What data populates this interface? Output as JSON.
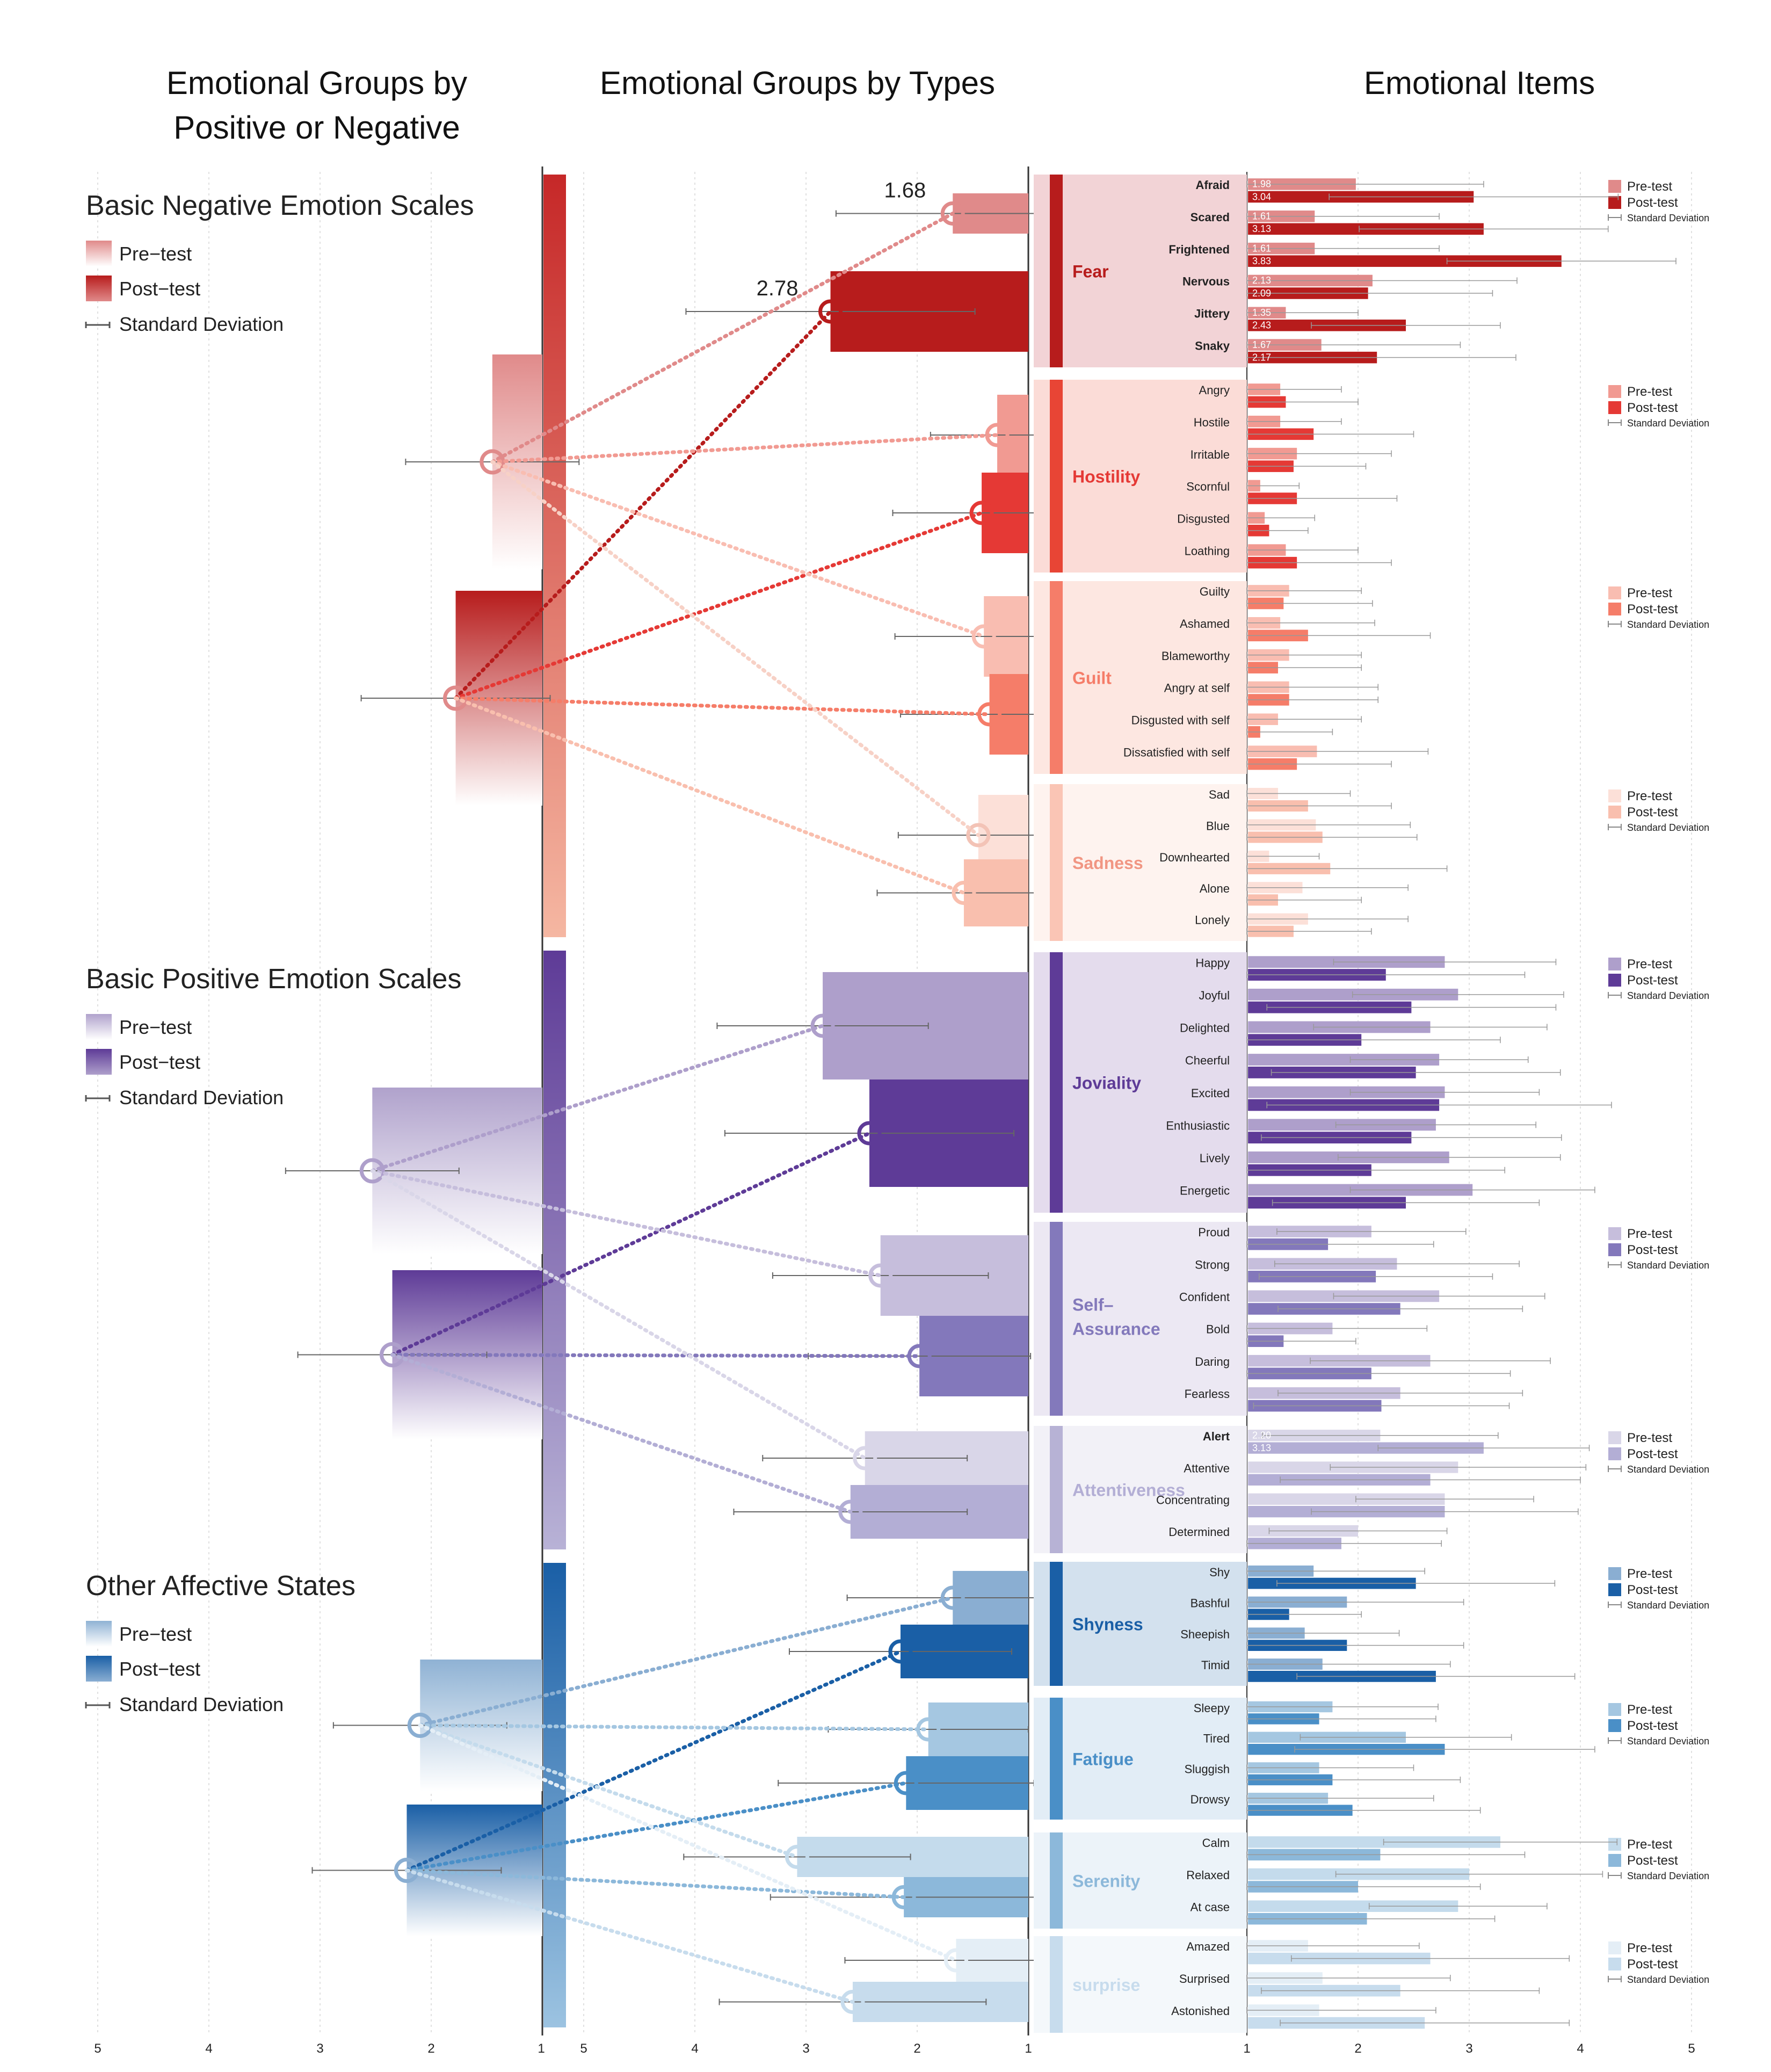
{
  "titles": {
    "left": [
      "Emotional Groups by",
      "Positive or Negative"
    ],
    "middle": "Emotional Groups by Types",
    "right": "Emotional Items"
  },
  "legend_labels": {
    "pre": "Pre−test",
    "post": "Post−test",
    "sd": "Standard Deviation"
  },
  "item_legend_labels": {
    "pre": "Pre-test",
    "post": "Post-test",
    "sd": "Standard Deviation"
  },
  "axes": {
    "left_ticks": [
      "5",
      "4",
      "3",
      "2",
      "1"
    ],
    "middle_ticks": [
      "5",
      "4",
      "3",
      "2",
      "1"
    ],
    "right_ticks": [
      "1",
      "2",
      "3",
      "4",
      "5"
    ],
    "range": [
      1,
      5
    ]
  },
  "colors": {
    "red_dark": "#b71c1c",
    "red_pre": "#e08a8a",
    "purple_dark": "#5e3b97",
    "purple_pre": "#b0a2cc",
    "blue_dark": "#1a5fa6",
    "blue_pre": "#8fb2d4"
  },
  "chart_data": {
    "type": "bar",
    "annotations": {
      "fear_pre": "1.68",
      "fear_post": "2.78"
    },
    "groups": [
      {
        "name": "Basic Negative Emotion Scales",
        "theme": "red",
        "pre": 1.45,
        "pre_sd": 0.78,
        "post": 1.78,
        "post_sd": 0.85,
        "types": [
          {
            "name": "Fear",
            "pre": 1.68,
            "pre_sd": 1.05,
            "post": 2.78,
            "post_sd": 1.3,
            "items": [
              {
                "name": "Afraid",
                "pre": 1.98,
                "pre_sd": 1.15,
                "post": 3.04,
                "post_sd": 1.3,
                "pre_label": "1.98",
                "post_label": "3.04",
                "bold": true
              },
              {
                "name": "Scared",
                "pre": 1.61,
                "pre_sd": 1.12,
                "post": 3.13,
                "post_sd": 1.12,
                "pre_label": "1.61",
                "post_label": "3.13",
                "bold": true
              },
              {
                "name": "Frightened",
                "pre": 1.61,
                "pre_sd": 1.12,
                "post": 3.83,
                "post_sd": 1.03,
                "pre_label": "1.61",
                "post_label": "3.83",
                "bold": true
              },
              {
                "name": "Nervous",
                "pre": 2.13,
                "pre_sd": 1.3,
                "post": 2.09,
                "post_sd": 1.12,
                "pre_label": "2.13",
                "post_label": "2.09",
                "bold": true
              },
              {
                "name": "Jittery",
                "pre": 1.35,
                "pre_sd": 0.65,
                "post": 2.43,
                "post_sd": 0.85,
                "pre_label": "1.35",
                "post_label": "2.43",
                "bold": true
              },
              {
                "name": "Snaky",
                "pre": 1.67,
                "pre_sd": 1.25,
                "post": 2.17,
                "post_sd": 1.25,
                "pre_label": "1.67",
                "post_label": "2.17",
                "bold": true
              }
            ]
          },
          {
            "name": "Hostility",
            "pre": 1.28,
            "pre_sd": 0.6,
            "post": 1.42,
            "post_sd": 0.8,
            "items": [
              {
                "name": "Angry",
                "pre": 1.3,
                "pre_sd": 0.55,
                "post": 1.35,
                "post_sd": 0.65
              },
              {
                "name": "Hostile",
                "pre": 1.3,
                "pre_sd": 0.55,
                "post": 1.6,
                "post_sd": 0.9
              },
              {
                "name": "Irritable",
                "pre": 1.45,
                "pre_sd": 0.85,
                "post": 1.42,
                "post_sd": 0.65
              },
              {
                "name": "Scornful",
                "pre": 1.12,
                "pre_sd": 0.35,
                "post": 1.45,
                "post_sd": 0.9
              },
              {
                "name": "Disgusted",
                "pre": 1.16,
                "pre_sd": 0.45,
                "post": 1.2,
                "post_sd": 0.35
              },
              {
                "name": "Loathing",
                "pre": 1.35,
                "pre_sd": 0.65,
                "post": 1.45,
                "post_sd": 0.85
              }
            ]
          },
          {
            "name": "Guilt",
            "pre": 1.4,
            "pre_sd": 0.8,
            "post": 1.35,
            "post_sd": 0.8,
            "items": [
              {
                "name": "Guilty",
                "pre": 1.38,
                "pre_sd": 0.65,
                "post": 1.33,
                "post_sd": 0.8
              },
              {
                "name": "Ashamed",
                "pre": 1.3,
                "pre_sd": 0.85,
                "post": 1.55,
                "post_sd": 1.1
              },
              {
                "name": "Blameworthy",
                "pre": 1.38,
                "pre_sd": 0.65,
                "post": 1.28,
                "post_sd": 0.75
              },
              {
                "name": "Angry at self",
                "pre": 1.38,
                "pre_sd": 0.8,
                "post": 1.38,
                "post_sd": 0.8
              },
              {
                "name": "Disgusted with self",
                "pre": 1.28,
                "pre_sd": 0.75,
                "post": 1.12,
                "post_sd": 0.65
              },
              {
                "name": "Dissatisfied with self",
                "pre": 1.63,
                "pre_sd": 1.0,
                "post": 1.45,
                "post_sd": 0.85
              }
            ]
          },
          {
            "name": "Sadness",
            "pre": 1.45,
            "pre_sd": 0.72,
            "post": 1.58,
            "post_sd": 0.78,
            "items": [
              {
                "name": "Sad",
                "pre": 1.28,
                "pre_sd": 0.65,
                "post": 1.55,
                "post_sd": 0.75
              },
              {
                "name": "Blue",
                "pre": 1.62,
                "pre_sd": 0.85,
                "post": 1.68,
                "post_sd": 0.85
              },
              {
                "name": "Downhearted",
                "pre": 1.2,
                "pre_sd": 0.45,
                "post": 1.75,
                "post_sd": 1.05
              },
              {
                "name": "Alone",
                "pre": 1.5,
                "pre_sd": 0.95,
                "post": 1.28,
                "post_sd": 0.75
              },
              {
                "name": "Lonely",
                "pre": 1.55,
                "pre_sd": 0.9,
                "post": 1.42,
                "post_sd": 0.7
              }
            ]
          }
        ]
      },
      {
        "name": "Basic Positive Emotion Scales",
        "theme": "purple",
        "pre": 2.53,
        "pre_sd": 0.78,
        "post": 2.35,
        "post_sd": 0.85,
        "types": [
          {
            "name": "Joviality",
            "pre": 2.85,
            "pre_sd": 0.95,
            "post": 2.43,
            "post_sd": 1.3,
            "items": [
              {
                "name": "Happy",
                "pre": 2.78,
                "pre_sd": 1.0,
                "post": 2.25,
                "post_sd": 1.25
              },
              {
                "name": "Joyful",
                "pre": 2.9,
                "pre_sd": 0.95,
                "post": 2.48,
                "post_sd": 1.3
              },
              {
                "name": "Delighted",
                "pre": 2.65,
                "pre_sd": 1.05,
                "post": 2.03,
                "post_sd": 1.25
              },
              {
                "name": "Cheerful",
                "pre": 2.73,
                "pre_sd": 0.8,
                "post": 2.52,
                "post_sd": 1.3
              },
              {
                "name": "Excited",
                "pre": 2.78,
                "pre_sd": 0.85,
                "post": 2.73,
                "post_sd": 1.55
              },
              {
                "name": "Enthusiastic",
                "pre": 2.7,
                "pre_sd": 0.9,
                "post": 2.48,
                "post_sd": 1.35
              },
              {
                "name": "Lively",
                "pre": 2.82,
                "pre_sd": 1.0,
                "post": 2.12,
                "post_sd": 1.2
              },
              {
                "name": "Energetic",
                "pre": 3.03,
                "pre_sd": 1.1,
                "post": 2.43,
                "post_sd": 1.2
              }
            ]
          },
          {
            "name": "Self-Assurance",
            "pre": 2.33,
            "pre_sd": 0.97,
            "post": 1.98,
            "post_sd": 1.0,
            "items": [
              {
                "name": "Proud",
                "pre": 2.12,
                "pre_sd": 0.85,
                "post": 1.73,
                "post_sd": 0.95
              },
              {
                "name": "Strong",
                "pre": 2.35,
                "pre_sd": 1.1,
                "post": 2.16,
                "post_sd": 1.05
              },
              {
                "name": "Confident",
                "pre": 2.73,
                "pre_sd": 0.95,
                "post": 2.38,
                "post_sd": 1.1
              },
              {
                "name": "Bold",
                "pre": 1.77,
                "pre_sd": 0.85,
                "post": 1.33,
                "post_sd": 0.65
              },
              {
                "name": "Daring",
                "pre": 2.65,
                "pre_sd": 1.08,
                "post": 2.12,
                "post_sd": 1.25
              },
              {
                "name": "Fearless",
                "pre": 2.38,
                "pre_sd": 1.1,
                "post": 2.21,
                "post_sd": 1.15
              }
            ]
          },
          {
            "name": "Attentiveness",
            "pre": 2.47,
            "pre_sd": 0.92,
            "post": 2.6,
            "post_sd": 1.05,
            "items": [
              {
                "name": "Alert",
                "pre": 2.2,
                "pre_sd": 1.06,
                "post": 3.13,
                "post_sd": 0.95,
                "pre_label": "2.20",
                "post_label": "3.13",
                "bold": true
              },
              {
                "name": "Attentive",
                "pre": 2.9,
                "pre_sd": 1.15,
                "post": 2.65,
                "post_sd": 1.35
              },
              {
                "name": "Concentrating",
                "pre": 2.78,
                "pre_sd": 0.8,
                "post": 2.78,
                "post_sd": 1.2
              },
              {
                "name": "Determined",
                "pre": 2.0,
                "pre_sd": 0.8,
                "post": 1.85,
                "post_sd": 0.9
              }
            ]
          }
        ]
      },
      {
        "name": "Other Affective States",
        "theme": "blue",
        "pre": 2.1,
        "pre_sd": 0.78,
        "post": 2.22,
        "post_sd": 0.85,
        "types": [
          {
            "name": "Shyness",
            "pre": 1.68,
            "pre_sd": 0.95,
            "post": 2.15,
            "post_sd": 1.0,
            "items": [
              {
                "name": "Shy",
                "pre": 1.6,
                "pre_sd": 1.0,
                "post": 2.52,
                "post_sd": 1.25
              },
              {
                "name": "Bashful",
                "pre": 1.9,
                "pre_sd": 1.05,
                "post": 1.38,
                "post_sd": 0.65
              },
              {
                "name": "Sheepish",
                "pre": 1.52,
                "pre_sd": 0.85,
                "post": 1.9,
                "post_sd": 1.05
              },
              {
                "name": "Timid",
                "pre": 1.68,
                "pre_sd": 1.15,
                "post": 2.7,
                "post_sd": 1.25
              }
            ]
          },
          {
            "name": "Fatigue",
            "pre": 1.9,
            "pre_sd": 0.9,
            "post": 2.1,
            "post_sd": 1.15,
            "items": [
              {
                "name": "Sleepy",
                "pre": 1.77,
                "pre_sd": 0.95,
                "post": 1.65,
                "post_sd": 1.05
              },
              {
                "name": "Tired",
                "pre": 2.43,
                "pre_sd": 0.95,
                "post": 2.78,
                "post_sd": 1.35
              },
              {
                "name": "Sluggish",
                "pre": 1.65,
                "pre_sd": 0.85,
                "post": 1.77,
                "post_sd": 1.15
              },
              {
                "name": "Drowsy",
                "pre": 1.73,
                "pre_sd": 0.95,
                "post": 1.95,
                "post_sd": 1.15
              }
            ]
          },
          {
            "name": "Serenity",
            "pre": 3.08,
            "pre_sd": 1.02,
            "post": 2.12,
            "post_sd": 1.2,
            "items": [
              {
                "name": "Calm",
                "pre": 3.28,
                "pre_sd": 1.05,
                "post": 2.2,
                "post_sd": 1.3
              },
              {
                "name": "Relaxed",
                "pre": 3.0,
                "pre_sd": 1.2,
                "post": 2.0,
                "post_sd": 1.1
              },
              {
                "name": "At case",
                "pre": 2.9,
                "pre_sd": 0.8,
                "post": 2.08,
                "post_sd": 1.15
              }
            ]
          },
          {
            "name": "surprise",
            "pre": 1.65,
            "pre_sd": 1.0,
            "post": 2.58,
            "post_sd": 1.2,
            "items": [
              {
                "name": "Amazed",
                "pre": 1.55,
                "pre_sd": 1.0,
                "post": 2.65,
                "post_sd": 1.25
              },
              {
                "name": "Surprised",
                "pre": 1.68,
                "pre_sd": 1.15,
                "post": 2.38,
                "post_sd": 1.25
              },
              {
                "name": "Astonished",
                "pre": 1.65,
                "pre_sd": 1.05,
                "post": 2.6,
                "post_sd": 1.3
              }
            ]
          }
        ]
      }
    ]
  }
}
